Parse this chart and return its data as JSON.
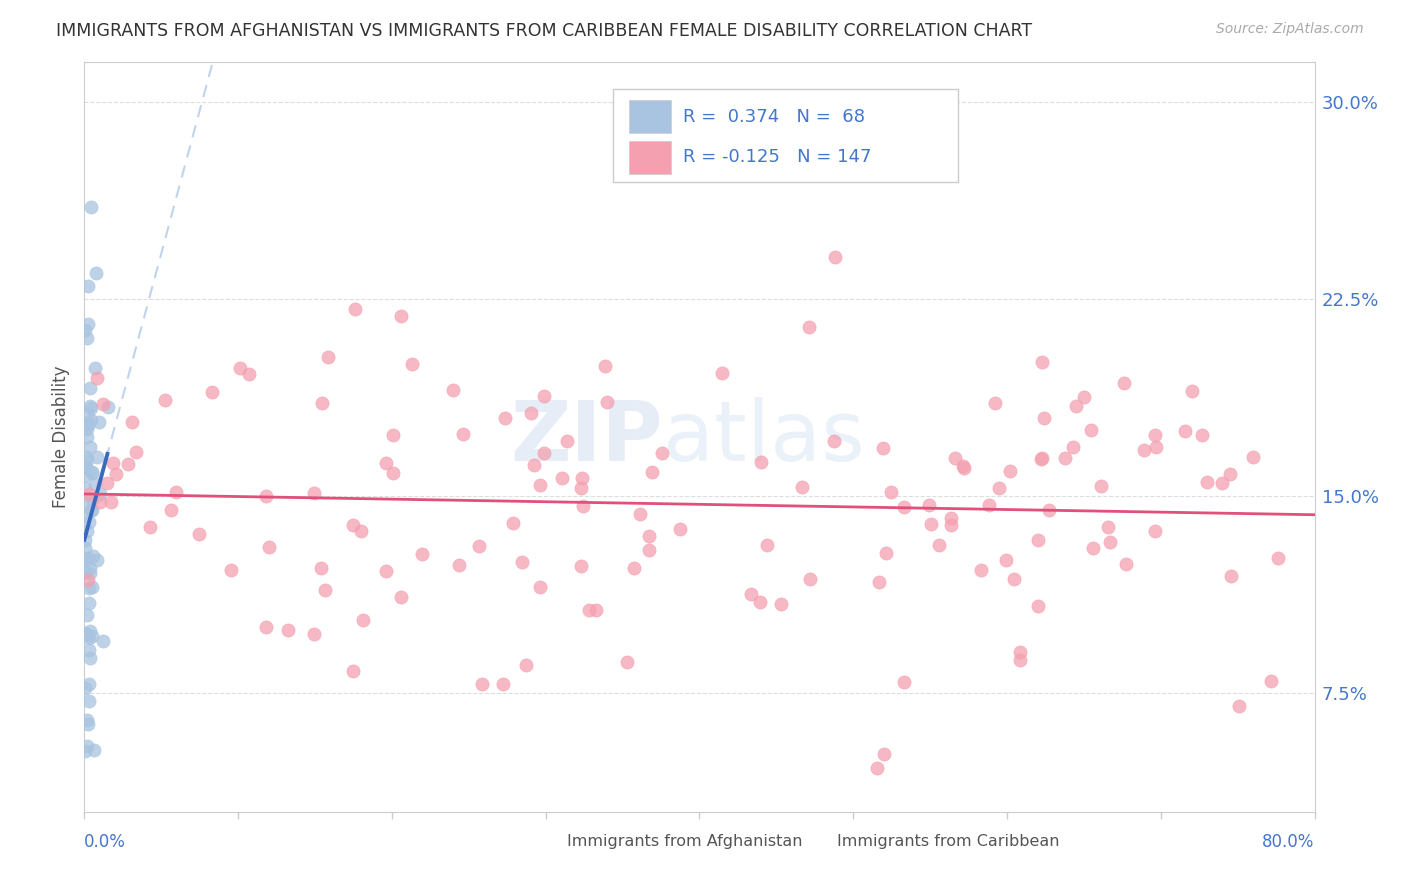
{
  "title": "IMMIGRANTS FROM AFGHANISTAN VS IMMIGRANTS FROM CARIBBEAN FEMALE DISABILITY CORRELATION CHART",
  "source": "Source: ZipAtlas.com",
  "ylabel": "Female Disability",
  "yticks": [
    0.075,
    0.15,
    0.225,
    0.3
  ],
  "ytick_labels": [
    "7.5%",
    "15.0%",
    "22.5%",
    "30.0%"
  ],
  "xmin": 0.0,
  "xmax": 0.8,
  "ymin": 0.03,
  "ymax": 0.315,
  "r_afghanistan": 0.374,
  "n_afghanistan": 68,
  "r_caribbean": -0.125,
  "n_caribbean": 147,
  "color_afghanistan": "#a8c4e0",
  "color_caribbean": "#f4a0b0",
  "trendline_afghanistan": "#3a6abf",
  "trendline_caribbean": "#e0507a",
  "trendline_dashed_color": "#b8d0ea",
  "background": "#ffffff",
  "grid_color": "#dddddd",
  "legend_edge": "#cccccc",
  "axis_label_color": "#4477cc",
  "text_color": "#555555",
  "title_color": "#333333",
  "source_color": "#aaaaaa"
}
